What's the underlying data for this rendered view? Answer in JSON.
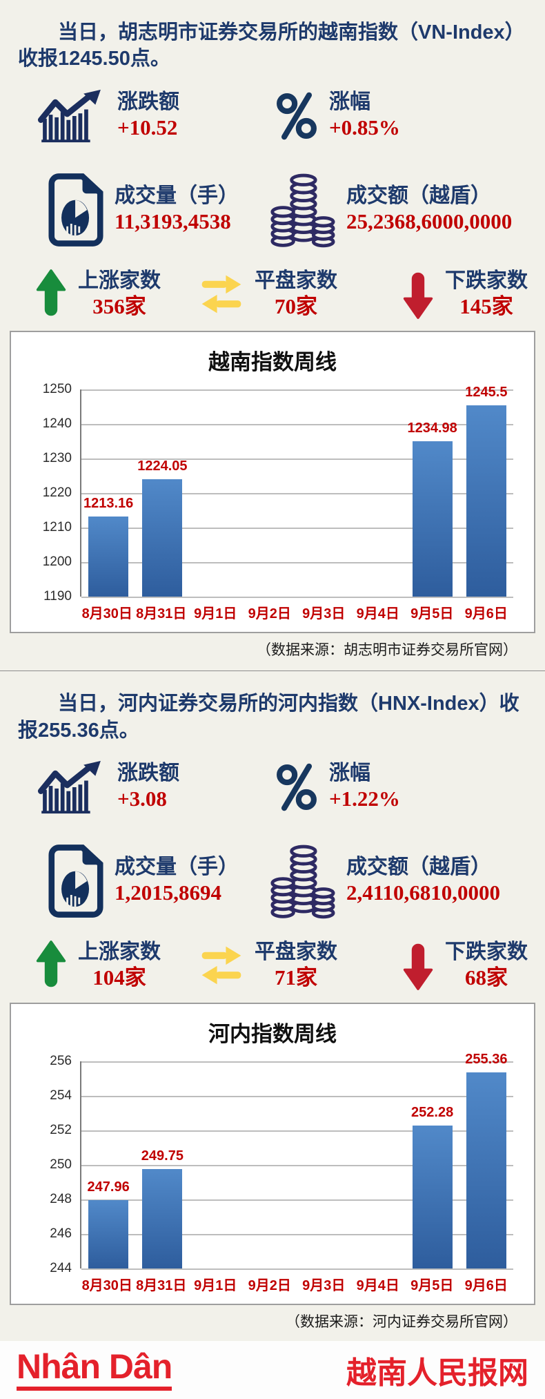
{
  "page": {
    "background": "#f2f1ea",
    "accent_navy": "#1e3a6c",
    "accent_red": "#c00000",
    "up_green": "#188c3c",
    "flat_yellow": "#fbd44f",
    "down_red": "#c01e2e"
  },
  "sections": [
    {
      "headline": "当日，胡志明市证券交易所的越南指数（VN-Index）收报1245.50点。",
      "stats": {
        "change": {
          "label": "涨跌额",
          "value": "+10.52"
        },
        "change_pct": {
          "label": "涨幅",
          "value": "+0.85%"
        },
        "volume": {
          "label": "成交量（手）",
          "value": "11,3193,4538"
        },
        "turnover": {
          "label": "成交额（越盾）",
          "value": "25,2368,6000,0000"
        },
        "advancers": {
          "label": "上涨家数",
          "value": "356家"
        },
        "unchanged": {
          "label": "平盘家数",
          "value": "70家"
        },
        "decliners": {
          "label": "下跌家数",
          "value": "145家"
        }
      },
      "source": "（数据来源：胡志明市证券交易所官网）"
    },
    {
      "headline": "当日，河内证券交易所的河内指数（HNX-Index）收报255.36点。",
      "stats": {
        "change": {
          "label": "涨跌额",
          "value": "+3.08"
        },
        "change_pct": {
          "label": "涨幅",
          "value": "+1.22%"
        },
        "volume": {
          "label": "成交量（手）",
          "value": "1,2015,8694"
        },
        "turnover": {
          "label": "成交额（越盾）",
          "value": "2,4110,6810,0000"
        },
        "advancers": {
          "label": "上涨家数",
          "value": "104家"
        },
        "unchanged": {
          "label": "平盘家数",
          "value": "71家"
        },
        "decliners": {
          "label": "下跌家数",
          "value": "68家"
        }
      },
      "source": "（数据来源：河内证券交易所官网）"
    }
  ],
  "chart_data": [
    {
      "type": "bar",
      "title": "越南指数周线",
      "categories": [
        "8月30日",
        "8月31日",
        "9月1日",
        "9月2日",
        "9月3日",
        "9月4日",
        "9月5日",
        "9月6日"
      ],
      "values": [
        1213.16,
        1224.05,
        null,
        null,
        null,
        null,
        1234.98,
        1245.5
      ],
      "ylim": [
        1190,
        1250
      ],
      "yticks": [
        1250,
        1240,
        1230,
        1220,
        1210,
        1200,
        1190
      ],
      "grid": true,
      "legend": "none",
      "bar_color_top": "#5189c9",
      "bar_color_bottom": "#2e5d9d",
      "value_label_color": "#c00000",
      "xtick_color": "#c00000"
    },
    {
      "type": "bar",
      "title": "河内指数周线",
      "categories": [
        "8月30日",
        "8月31日",
        "9月1日",
        "9月2日",
        "9月3日",
        "9月4日",
        "9月5日",
        "9月6日"
      ],
      "values": [
        247.96,
        249.75,
        null,
        null,
        null,
        null,
        252.28,
        255.36
      ],
      "ylim": [
        244,
        256
      ],
      "yticks": [
        256,
        254,
        252,
        250,
        248,
        246,
        244
      ],
      "grid": true,
      "legend": "none",
      "bar_color_top": "#5189c9",
      "bar_color_bottom": "#2e5d9d",
      "value_label_color": "#c00000",
      "xtick_color": "#c00000"
    }
  ],
  "footer": {
    "logo_text": "Nhân Dân",
    "site_name": "越南人民报网"
  }
}
